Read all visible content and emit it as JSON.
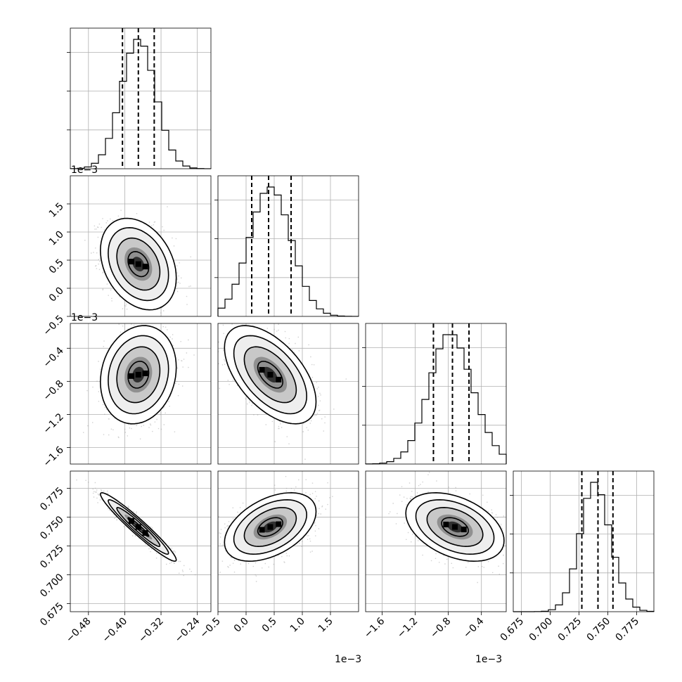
{
  "chart_data": {
    "type": "corner",
    "n_params": 4,
    "param_ranges": [
      [
        -0.52,
        -0.21
      ],
      [
        -0.0005,
        0.002
      ],
      [
        -0.0018,
        -0.0001
      ],
      [
        0.668,
        0.79
      ]
    ],
    "axis_ticks": [
      {
        "values": [
          -0.48,
          -0.4,
          -0.32,
          -0.24
        ],
        "labels": [
          "−0.48",
          "−0.40",
          "−0.32",
          "−0.24"
        ]
      },
      {
        "values": [
          -0.0005,
          0.0,
          0.0005,
          0.001,
          0.0015
        ],
        "labels": [
          "−0.5",
          "0.0",
          "0.5",
          "1.0",
          "1.5"
        ]
      },
      {
        "values": [
          -0.0016,
          -0.0012,
          -0.0008,
          -0.0004
        ],
        "labels": [
          "−1.6",
          "−1.2",
          "−0.8",
          "−0.4"
        ]
      },
      {
        "values": [
          0.675,
          0.7,
          0.725,
          0.75,
          0.775
        ],
        "labels": [
          "0.675",
          "0.700",
          "0.725",
          "0.750",
          "0.775"
        ]
      }
    ],
    "offset_labels": {
      "row_1_y": "1e−3",
      "row_2_y": "1e−3",
      "col_1_x": "1e−3",
      "col_2_x": "1e−3"
    },
    "quantile_lines": [
      [
        -0.405,
        -0.37,
        -0.335
      ],
      [
        0.0001,
        0.0004,
        0.0008
      ],
      [
        -0.00098,
        -0.00075,
        -0.00055
      ],
      [
        0.7275,
        0.7415,
        0.7545
      ]
    ],
    "means": [
      -0.37,
      0.00043,
      -0.00072,
      0.7415
    ],
    "sigmas": [
      0.038,
      0.00037,
      0.00027,
      0.0135
    ],
    "correlations": [
      {
        "pair": [
          1,
          0
        ],
        "rho": -0.3
      },
      {
        "pair": [
          2,
          0
        ],
        "rho": 0.15
      },
      {
        "pair": [
          2,
          1
        ],
        "rho": -0.55
      },
      {
        "pair": [
          3,
          0
        ],
        "rho": -0.96
      },
      {
        "pair": [
          3,
          1
        ],
        "rho": 0.45
      },
      {
        "pair": [
          3,
          2
        ],
        "rho": -0.4
      }
    ],
    "grid": true,
    "n_bins": 20
  }
}
